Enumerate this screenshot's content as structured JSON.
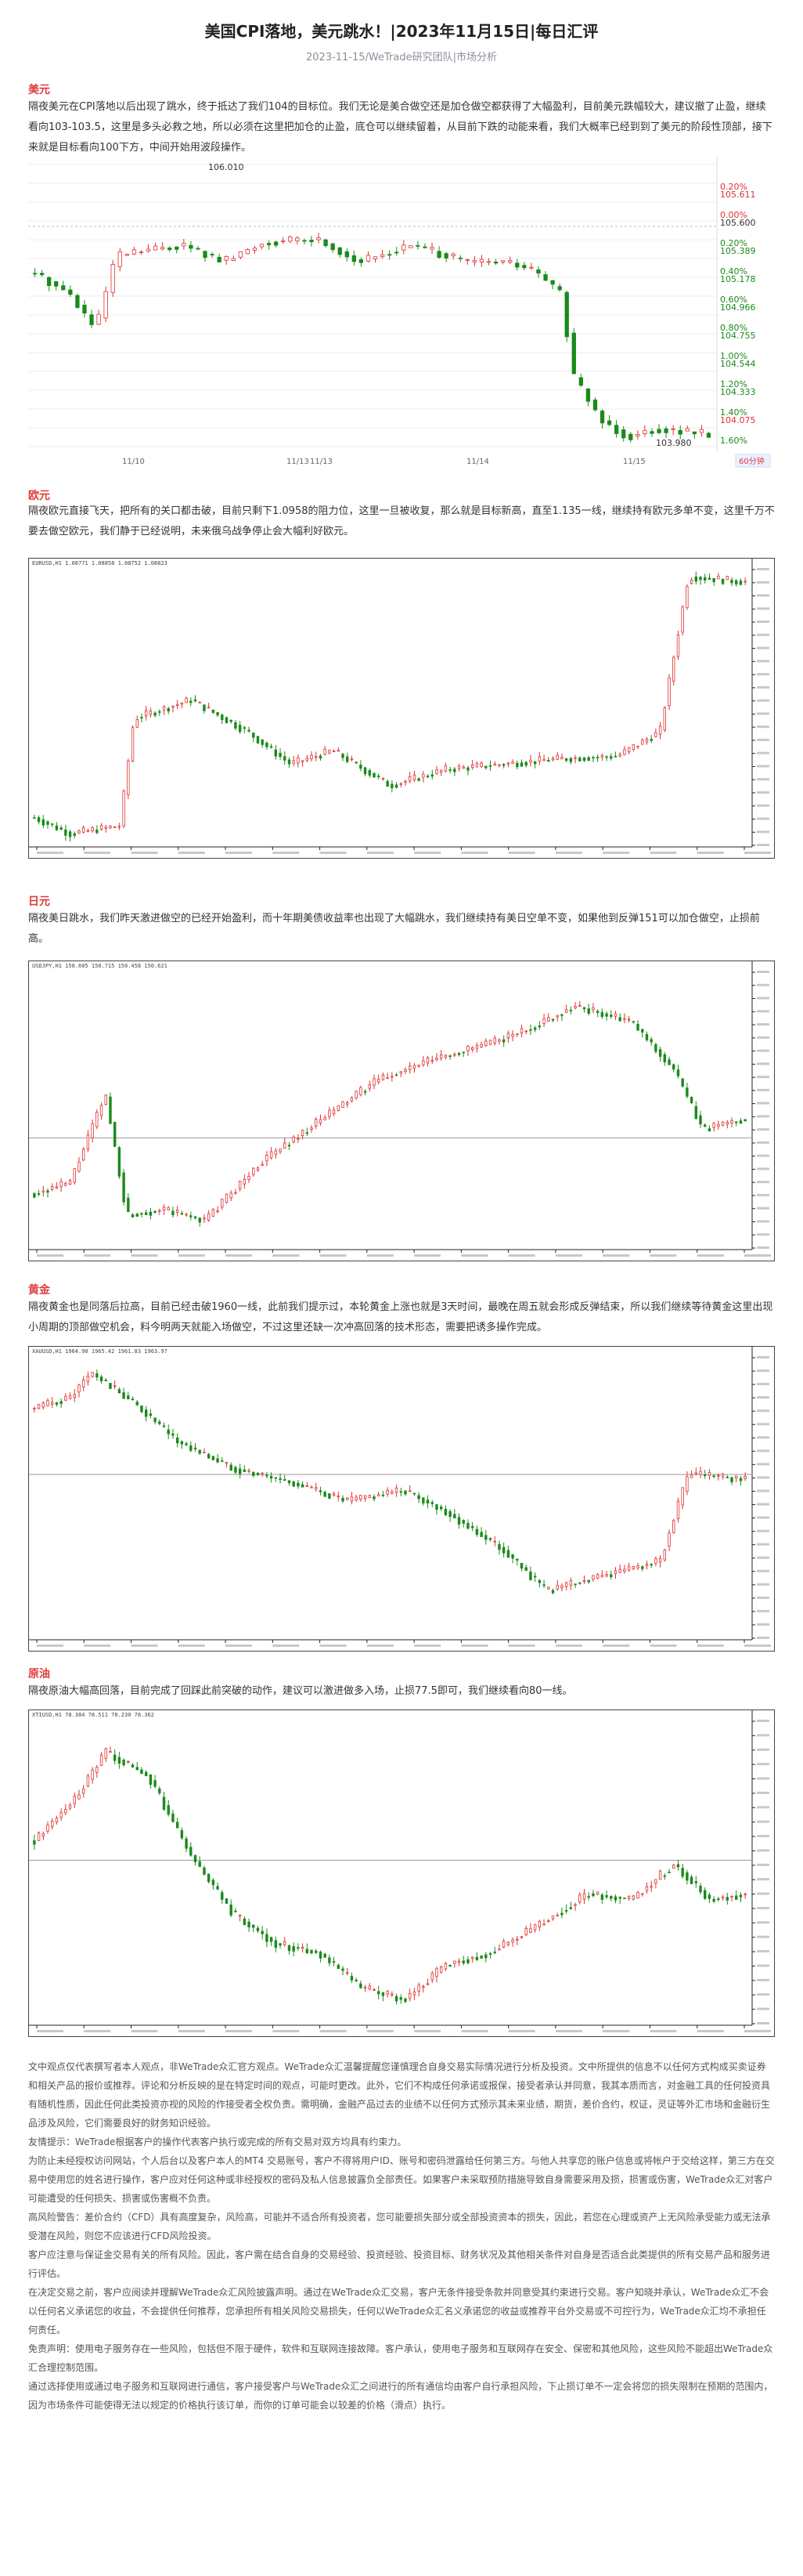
{
  "header": {
    "title": "美国CPI落地，美元跳水！|2023年11月15日|每日汇评",
    "meta": "2023-11-15/WeTrade研究团队|市场分析"
  },
  "sections": {
    "usd": {
      "heading": "美元",
      "text": "隔夜美元在CPI落地以后出现了跳水，终于抵达了我们104的目标位。我们无论是美合做空还是加仓做空都获得了大幅盈利，目前美元跌幅较大，建议撤了止盈，继续看向103-103.5，这里是多头必救之地，所以必须在这里把加仓的止盈，底仓可以继续留着，从目前下跌的动能来看，我们大概率已经到到了美元的阶段性顶部，接下来就是目标看向100下方，中间开始用波段操作。"
    },
    "eur": {
      "heading": "欧元",
      "text": "隔夜欧元直接飞天，把所有的关口都击破，目前只剩下1.0958的阻力位，这里一旦被收复，那么就是目标新高，直至1.135一线，继续持有欧元多单不变，这里千万不要去做空欧元，我们静于已经说明，未来俄乌战争停止会大幅利好欧元。"
    },
    "jpy": {
      "heading": "日元",
      "text": "隔夜美日跳水，我们昨天激进做空的已经开始盈利，而十年期美债收益率也出现了大幅跳水，我们继续持有美日空单不变，如果他到反弹151可以加仓做空，止损前高。"
    },
    "gold": {
      "heading": "黄金",
      "text": "隔夜黄金也是同落后拉高，目前已经击破1960一线，此前我们提示过，本轮黄金上涨也就是3天时间，最晚在周五就会形成反弹结束，所以我们继续等待黄金这里出现小周期的顶部做空机会，料今明两天就能入场做空，不过这里还缺一次冲高回落的技术形态，需要把诱多操作完成。"
    },
    "oil": {
      "heading": "原油",
      "text": "隔夜原油大幅高回落，目前完成了回踩此前突破的动作，建议可以激进做多入场，止损77.5即可，我们继续看向80一线。"
    }
  },
  "usd_chart": {
    "price_labels": [
      "106.010",
      "105.611",
      "105.600",
      "105.389",
      "105.178",
      "104.966",
      "104.755",
      "104.544",
      "104.333",
      "104.075",
      "103.980"
    ],
    "pct_labels": [
      "0.20%",
      "0.00%",
      "0.20%",
      "0.40%",
      "0.60%",
      "0.80%",
      "1.00%",
      "1.20%",
      "1.40%",
      "1.60%"
    ],
    "time_labels": [
      "11/10",
      "11/13",
      "11/13",
      "11/14",
      "11/15"
    ],
    "high_label": "106.010",
    "low_label": "103.980",
    "interval_label": "60分钟"
  },
  "mt4": {
    "eur_head": "EURUSD,H1  1.08771 1.08858 1.08752 1.08823",
    "jpy_head": "USDJPY,H1  150.605 150.715 150.458 150.621",
    "gold_head": "XAUUSD,H1  1964.90 1965.42 1961.83 1963.97",
    "oil_head": "XTIUSD,H1  78.384 78.511 78.230 78.362"
  },
  "disclaimer": [
    "文中观点仅代表撰写者本人观点，非WeTrade众汇官方观点。WeTrade众汇温馨提醒您谨慎理合自身交易实际情况进行分析及投资。文中所提供的信息不以任何方式构成买卖证券和相关产品的报价或推荐。评论和分析反映的是在特定时间的观点，可能时更改。此外，它们不构成任何承诺或报保，接受者承认并同意，我其本质而言，对金融工具的任何投资具有随机性质，因此任何此类投资亦视的风险的作接受者全权负责。需明确，金融产品过去的业绩不以任何方式预示其未来业绩，期货，差价合约，权证，灵证等外汇市场和金融衍生品涉及风险，它们需要良好的财务知识经验。",
    "友情提示：WeTrade根据客户的操作代表客户执行或完成的所有交易对双方均具有约束力。",
    "为防止未经授权访问网站，个人后台以及客户本人的MT4 交易账号，客户不得将用户ID、账号和密码泄露给任何第三方。与他人共享您的账户信息或将帐户于交给这样，第三方在交易中使用您的姓名进行操作，客户应对任何这种或非经授权的密码及私人信息披露负全部责任。如果客户未采取预防措施导致自身需要采用及损，损害或伤害，WeTrade众汇对客户可能遭受的任何损失、损害或伤害概不负责。",
    "高风险警告：差价合约（CFD）具有高度复杂，风险高，可能并不适合所有投资者，您可能要损失部分或全部投资资本的损失，因此，若您在心理或资产上无风险承受能力或无法承受潜在风险，则您不应该进行CFD风险投资。",
    "客户应注意与保证金交易有关的所有风险。因此，客户需在结合自身的交易经验、投资经验、投资目标、财务状况及其他相关条件对自身是否适合此类提供的所有交易产品和服务进行评估。",
    "在决定交易之前，客户应阅读并理解WeTrade众汇风险披露声明。通过在WeTrade众汇交易，客户无条件接受条款并同意受其约束进行交易。客户知晓并承认，WeTrade众汇不会以任何名义承诺您的收益，不会提供任何推荐，您承担所有相关风险交易损失，任何以WeTrade众汇名义承诺您的收益或推荐平台外交易或不可控行为，WeTrade众汇均不承担任何责任。",
    "免责声明：使用电子服务存在一些风险，包括但不限于硬件，软件和互联网连接故障。客户承认，使用电子服务和互联网存在安全、保密和其他风险，这些风险不能超出WeTrade众汇合理控制范围。",
    "通过选择使用或通过电子服务和互联网进行通信，客户接受客户与WeTrade众汇之间进行的所有通信均由客户自行承担风险，下止损订单不一定会将您的损失限制在预期的范围内，因为市场条件可能使得无法以规定的价格执行该订单，而你的订单可能会以较差的价格（滑点）执行。"
  ]
}
